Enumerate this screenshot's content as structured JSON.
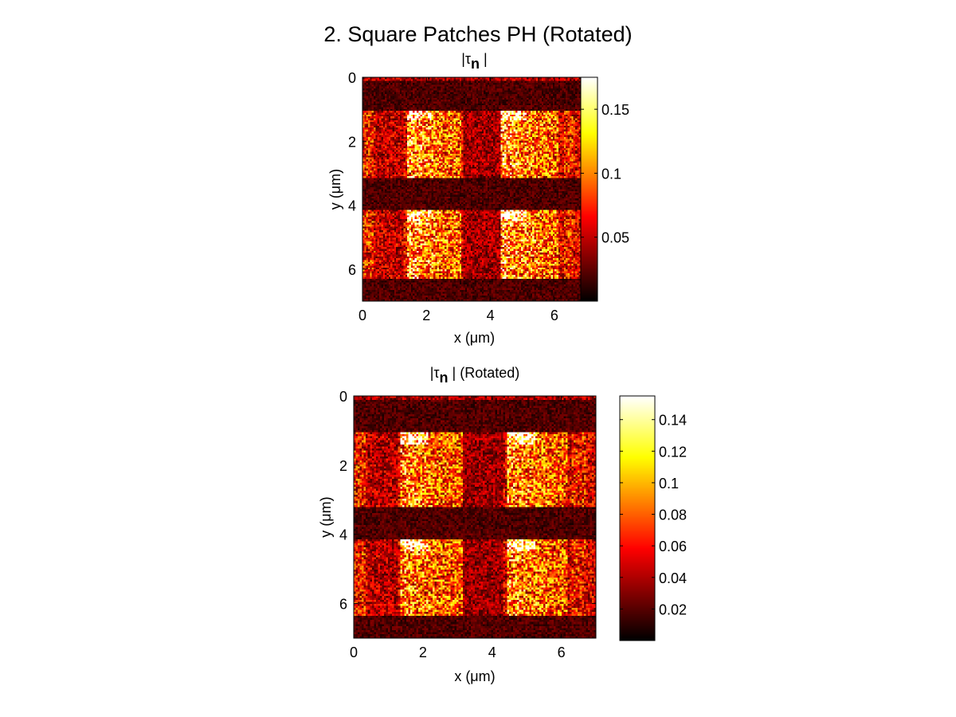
{
  "figure": {
    "suptitle": "2. Square Patches PH (Rotated)"
  },
  "chart_data": [
    {
      "type": "heatmap",
      "title_main": "|τ",
      "title_sub": "n",
      "title_after": " |",
      "xlabel": "x (μm)",
      "ylabel": "y (μm)",
      "xlim": [
        0,
        7
      ],
      "ylim": [
        0,
        7
      ],
      "y_direction": "top-to-bottom",
      "xticks": [
        0,
        2,
        4,
        6
      ],
      "yticks": [
        0,
        2,
        4,
        6
      ],
      "grid": false,
      "colormap": "hot",
      "colorbar": {
        "range": [
          0,
          0.175
        ],
        "ticks": [
          0.05,
          0.1,
          0.15
        ],
        "tick_labels": [
          "0.05",
          "0.1",
          "0.15"
        ]
      },
      "description_values": {
        "background_level": 0.02,
        "bar_level": 0.06,
        "patch_level": 0.11,
        "peak_level": 0.17
      },
      "bars_y": [
        [
          1.05,
          3.15
        ],
        [
          4.15,
          6.3
        ]
      ],
      "patches_x": [
        [
          1.4,
          3.1
        ],
        [
          4.3,
          6.1
        ]
      ],
      "faint_columns_x": [
        [
          0.0,
          0.35
        ],
        [
          6.3,
          6.6
        ]
      ]
    },
    {
      "type": "heatmap",
      "title_main": "|τ",
      "title_sub": "n",
      "title_after": " | (Rotated)",
      "xlabel": "x (μm)",
      "ylabel": "y (μm)",
      "xlim": [
        0,
        7
      ],
      "ylim": [
        0,
        7
      ],
      "y_direction": "top-to-bottom",
      "xticks": [
        0,
        2,
        4,
        6
      ],
      "yticks": [
        0,
        2,
        4,
        6
      ],
      "grid": false,
      "colormap": "hot",
      "colorbar": {
        "range": [
          0,
          0.155
        ],
        "ticks": [
          0.02,
          0.04,
          0.06,
          0.08,
          0.1,
          0.12,
          0.14
        ],
        "tick_labels": [
          "0.02",
          "0.04",
          "0.06",
          "0.08",
          "0.1",
          "0.12",
          "0.14"
        ]
      },
      "description_values": {
        "background_level": 0.018,
        "bar_level": 0.05,
        "patch_level": 0.09,
        "peak_level": 0.15
      },
      "bars_y": [
        [
          1.05,
          3.2
        ],
        [
          4.15,
          6.35
        ]
      ],
      "patches_x": [
        [
          1.35,
          3.15
        ],
        [
          4.45,
          6.2
        ]
      ],
      "faint_columns_x": [
        [
          0.0,
          0.35
        ],
        [
          6.3,
          6.7
        ]
      ]
    }
  ]
}
